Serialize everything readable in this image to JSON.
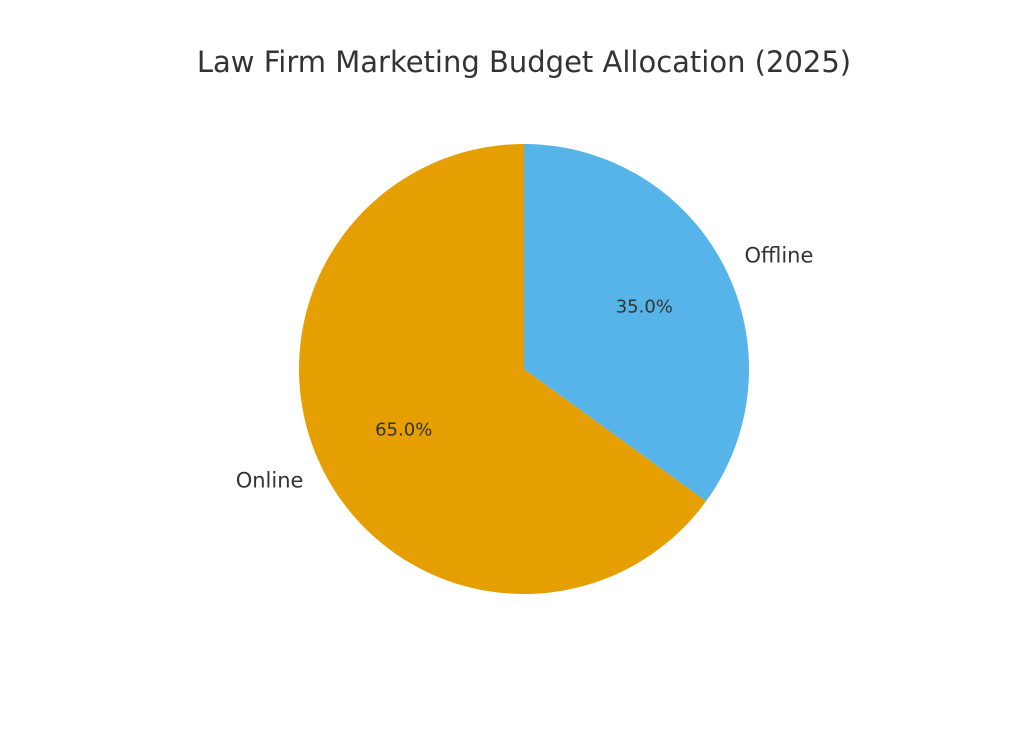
{
  "chart_data": {
    "type": "pie",
    "title": "Law Firm Marketing Budget Allocation (2025)",
    "categories": [
      "Online",
      "Offline"
    ],
    "values": [
      65,
      35
    ],
    "value_labels": [
      "65.0%",
      "35.0%"
    ],
    "colors": [
      "#e69f00",
      "#56b4e9"
    ],
    "start_angle": 90,
    "counterclockwise": true
  }
}
